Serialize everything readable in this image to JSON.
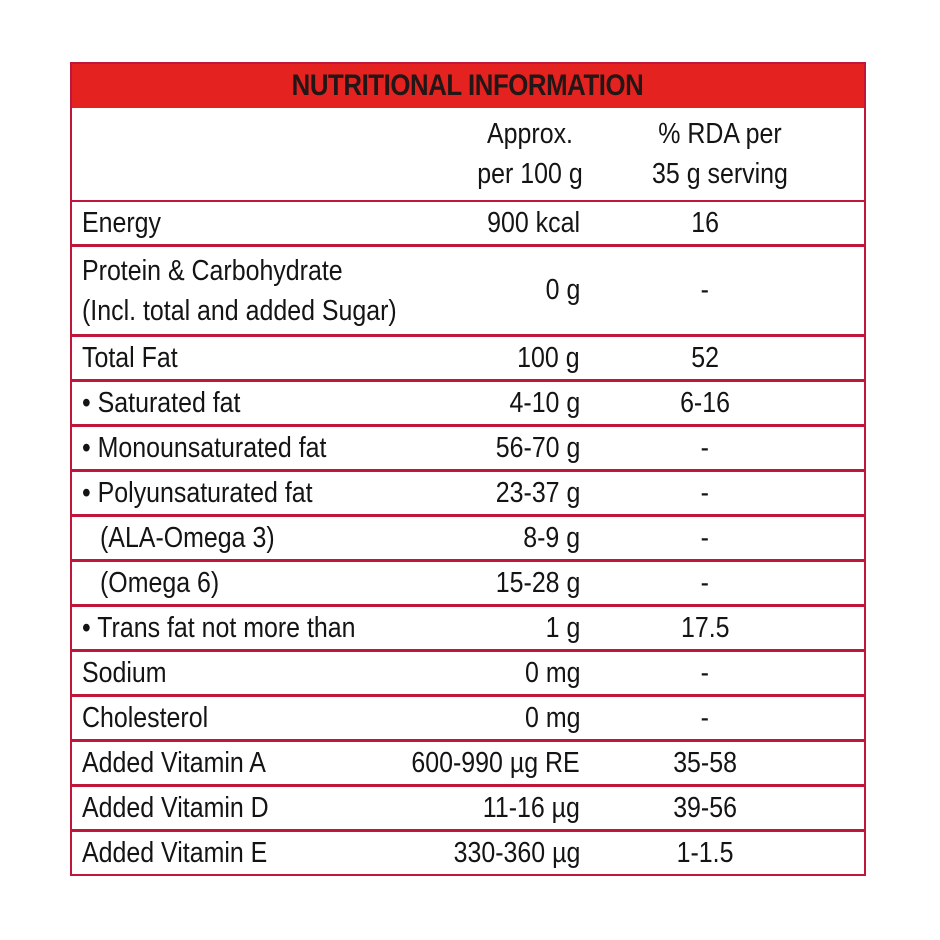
{
  "title": "NUTRITIONAL INFORMATION",
  "colors": {
    "title_band": "#e4221f",
    "border": "#c0163a",
    "text": "#141414"
  },
  "columns": {
    "name": "",
    "per_100g": [
      "Approx.",
      "per 100 g"
    ],
    "rda": [
      "% RDA per",
      "35 g serving"
    ]
  },
  "rows": [
    {
      "name": "Energy",
      "value": "900 kcal",
      "rda": "16"
    },
    {
      "name": [
        "Protein & Carbohydrate",
        "(Incl. total and added Sugar)"
      ],
      "value": "0 g",
      "rda": "-"
    },
    {
      "name": "Total Fat",
      "value": "100 g",
      "rda": "52"
    },
    {
      "name": "• Saturated fat",
      "value": "4-10 g",
      "rda": "6-16"
    },
    {
      "name": "• Monounsaturated fat",
      "value": "56-70 g",
      "rda": "-"
    },
    {
      "name": "• Polyunsaturated fat",
      "value": "23-37 g",
      "rda": "-"
    },
    {
      "name": "(ALA-Omega 3)",
      "value": "8-9 g",
      "rda": "-"
    },
    {
      "name": "(Omega 6)",
      "value": "15-28 g",
      "rda": "-"
    },
    {
      "name": "• Trans fat not more than",
      "value": "1 g",
      "rda": "17.5"
    },
    {
      "name": "Sodium",
      "value": "0 mg",
      "rda": "-"
    },
    {
      "name": "Cholesterol",
      "value": "0 mg",
      "rda": "-"
    },
    {
      "name": "Added Vitamin A",
      "value": "600-990 µg RE",
      "rda": "35-58"
    },
    {
      "name": "Added Vitamin D",
      "value": "11-16 µg",
      "rda": "39-56"
    },
    {
      "name": "Added Vitamin E",
      "value": "330-360 µg",
      "rda": "1-1.5"
    }
  ]
}
